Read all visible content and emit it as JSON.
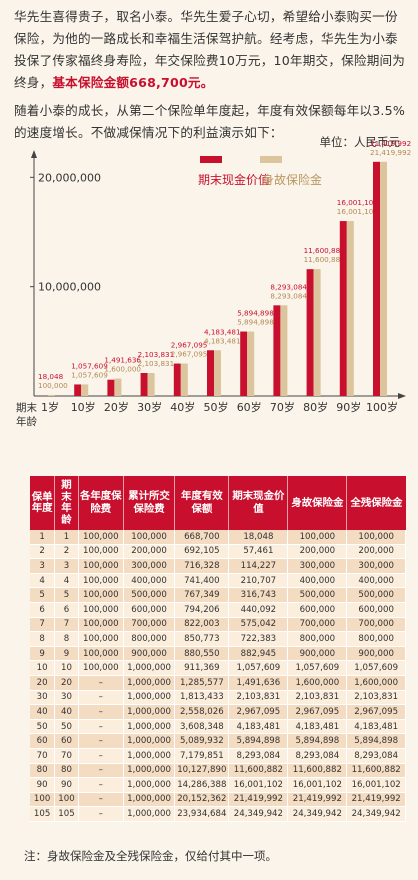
{
  "intro": {
    "p1_a": "华先生喜得贵子，取名小泰。华先生爱子心切，希望给小泰购买一份保险，为他的一路成长和幸福生活保驾护航。经考虑，华先生为小泰投保了传家福终身寿险，年交保险费10万元，10年期交，保险期间为终身，",
    "p1_b": "基本保险金额668,700元。",
    "p2": "随着小泰的成长，从第二个保险单年度起，年度有效保额每年以3.5%的速度增长。不做减保情况下的利益演示如下："
  },
  "unit": "单位：人民币元",
  "colors": {
    "cash": "#c8102e",
    "death": "#dcc49c",
    "header": "#c8102e"
  },
  "chart_data": {
    "type": "bar",
    "categories": [
      "1岁",
      "10岁",
      "20岁",
      "30岁",
      "40岁",
      "50岁",
      "60岁",
      "70岁",
      "80岁",
      "90岁",
      "100岁"
    ],
    "x_start_label": "期末",
    "x_start_label2": "年龄",
    "ylim": [
      0,
      22500000
    ],
    "y_ticks": [
      10000000,
      20000000
    ],
    "y_tick_labels": [
      "10,000,000",
      "20,000,000"
    ],
    "legend_position": "top-center",
    "series": [
      {
        "name": "期末现金价值",
        "values": [
          18048,
          1057609,
          1491636,
          2103831,
          2967095,
          4183481,
          5894898,
          8293084,
          11600882,
          16001102,
          21419992
        ]
      },
      {
        "name": "身故保险金",
        "values": [
          100000,
          1057609,
          1600000,
          2103831,
          2967095,
          4183481,
          5894898,
          8293084,
          11600882,
          16001102,
          21419992
        ]
      }
    ],
    "bar_labels_cash": [
      "18,048",
      "1,057,609",
      "1,491,636",
      "2,103,831",
      "2,967,095",
      "4,183,481",
      "5,894,898",
      "8,293,084",
      "11,600,882",
      "16,001,102",
      "21,419,992"
    ],
    "bar_labels_death": [
      "100,000",
      "1,057,609",
      "1,600,000",
      "2,103,831",
      "2,967,095",
      "4,183,481",
      "5,894,898",
      "8,293,084",
      "11,600,882",
      "16,001,102",
      "21,419,992"
    ]
  },
  "table": {
    "headers": [
      "保单年度",
      "期末年龄",
      "各年度保险费",
      "累计所交保险费",
      "年度有效保额",
      "期末现金价值",
      "身故保险金",
      "全残保险金"
    ],
    "rows": [
      [
        "1",
        "1",
        "100,000",
        "100,000",
        "668,700",
        "18,048",
        "100,000",
        "100,000"
      ],
      [
        "2",
        "2",
        "100,000",
        "200,000",
        "692,105",
        "57,461",
        "200,000",
        "200,000"
      ],
      [
        "3",
        "3",
        "100,000",
        "300,000",
        "716,328",
        "114,227",
        "300,000",
        "300,000"
      ],
      [
        "4",
        "4",
        "100,000",
        "400,000",
        "741,400",
        "210,707",
        "400,000",
        "400,000"
      ],
      [
        "5",
        "5",
        "100,000",
        "500,000",
        "767,349",
        "316,743",
        "500,000",
        "500,000"
      ],
      [
        "6",
        "6",
        "100,000",
        "600,000",
        "794,206",
        "440,092",
        "600,000",
        "600,000"
      ],
      [
        "7",
        "7",
        "100,000",
        "700,000",
        "822,003",
        "575,042",
        "700,000",
        "700,000"
      ],
      [
        "8",
        "8",
        "100,000",
        "800,000",
        "850,773",
        "722,383",
        "800,000",
        "800,000"
      ],
      [
        "9",
        "9",
        "100,000",
        "900,000",
        "880,550",
        "882,945",
        "900,000",
        "900,000"
      ],
      [
        "10",
        "10",
        "100,000",
        "1,000,000",
        "911,369",
        "1,057,609",
        "1,057,609",
        "1,057,609"
      ],
      [
        "20",
        "20",
        "–",
        "1,000,000",
        "1,285,577",
        "1,491,636",
        "1,600,000",
        "1,600,000"
      ],
      [
        "30",
        "30",
        "–",
        "1,000,000",
        "1,813,433",
        "2,103,831",
        "2,103,831",
        "2,103,831"
      ],
      [
        "40",
        "40",
        "–",
        "1,000,000",
        "2,558,026",
        "2,967,095",
        "2,967,095",
        "2,967,095"
      ],
      [
        "50",
        "50",
        "–",
        "1,000,000",
        "3,608,348",
        "4,183,481",
        "4,183,481",
        "4,183,481"
      ],
      [
        "60",
        "60",
        "–",
        "1,000,000",
        "5,089,932",
        "5,894,898",
        "5,894,898",
        "5,894,898"
      ],
      [
        "70",
        "70",
        "–",
        "1,000,000",
        "7,179,851",
        "8,293,084",
        "8,293,084",
        "8,293,084"
      ],
      [
        "80",
        "80",
        "–",
        "1,000,000",
        "10,127,890",
        "11,600,882",
        "11,600,882",
        "11,600,882"
      ],
      [
        "90",
        "90",
        "–",
        "1,000,000",
        "14,286,388",
        "16,001,102",
        "16,001,102",
        "16,001,102"
      ],
      [
        "100",
        "100",
        "–",
        "1,000,000",
        "20,152,362",
        "21,419,992",
        "21,419,992",
        "21,419,992"
      ],
      [
        "105",
        "105",
        "–",
        "1,000,000",
        "23,934,684",
        "24,349,942",
        "24,349,942",
        "24,349,942"
      ]
    ]
  },
  "note": "注：身故保险金及全残保险金，仅给付其中一项。"
}
